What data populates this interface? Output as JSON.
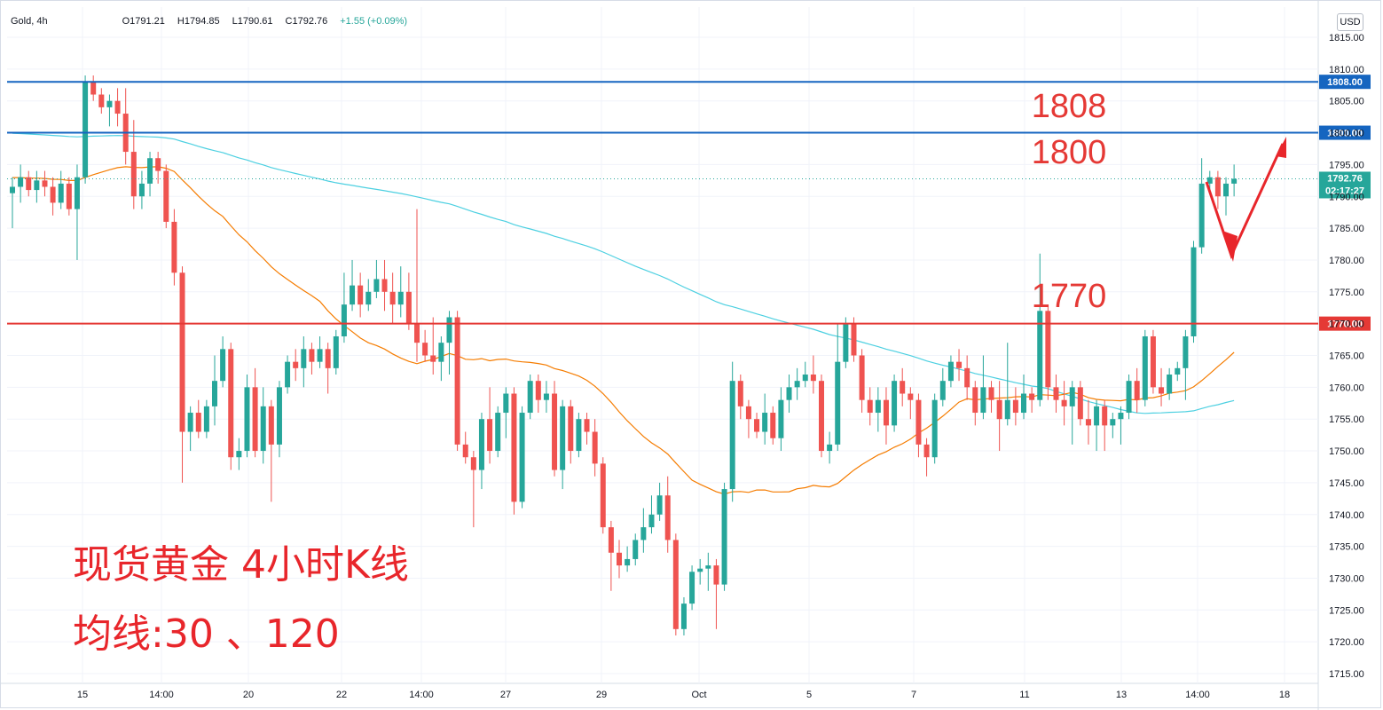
{
  "header": {
    "symbol": "Gold, 4h",
    "open": "O1791.21",
    "high": "H1794.85",
    "low": "L1790.61",
    "close": "C1792.76",
    "change": "+1.55 (+0.09%)"
  },
  "currency_button": "USD",
  "annotations": {
    "line1": "现货黄金 4小时K线",
    "line2": "均线:30 、120"
  },
  "colors": {
    "up": "#26a69a",
    "down": "#ef5350",
    "resistance": "#1565c0",
    "support": "#e53935",
    "ma30": "#f57c00",
    "ma120": "#4dd0e1",
    "arrow": "#e8262b"
  },
  "chart_data": {
    "type": "candlestick",
    "ylim": [
      1711,
      1820
    ],
    "y_ticks": [
      1715,
      1720,
      1725,
      1730,
      1735,
      1740,
      1745,
      1750,
      1755,
      1760,
      1765,
      1770,
      1775,
      1780,
      1785,
      1790,
      1795,
      1800,
      1805,
      1810,
      1815
    ],
    "x_ticks": [
      "15",
      "14:00",
      "20",
      "22",
      "14:00",
      "27",
      "29",
      "Oct",
      "5",
      "7",
      "11",
      "13",
      "14:00",
      "18"
    ],
    "levels": [
      {
        "label": "1808",
        "value": 1808,
        "badge": "1808.00",
        "color": "resistance"
      },
      {
        "label": "1800",
        "value": 1800,
        "badge": "1800.00",
        "color": "resistance"
      },
      {
        "label": "1770",
        "value": 1770,
        "badge": "1770.00",
        "color": "support"
      }
    ],
    "last_price": {
      "value": 1792.76,
      "label": "1792.76",
      "countdown": "02:17:27"
    },
    "candles": [
      [
        1790.5,
        1791.5,
        1785,
        1793
      ],
      [
        1791.5,
        1793,
        1789,
        1795
      ],
      [
        1793,
        1791,
        1790,
        1794
      ],
      [
        1791,
        1792.5,
        1789,
        1794
      ],
      [
        1792.5,
        1791.5,
        1790,
        1794
      ],
      [
        1791.5,
        1789,
        1787,
        1793
      ],
      [
        1789,
        1792,
        1788,
        1794
      ],
      [
        1792,
        1788,
        1787,
        1793
      ],
      [
        1788,
        1793,
        1780,
        1795
      ],
      [
        1793,
        1808,
        1792,
        1809
      ],
      [
        1808,
        1806,
        1805,
        1809
      ],
      [
        1806,
        1804,
        1803,
        1807
      ],
      [
        1804,
        1805,
        1801,
        1806
      ],
      [
        1805,
        1803,
        1801,
        1807
      ],
      [
        1803,
        1797,
        1795,
        1807
      ],
      [
        1797,
        1790,
        1788,
        1802
      ],
      [
        1790,
        1792,
        1788,
        1794
      ],
      [
        1792,
        1796,
        1790,
        1797
      ],
      [
        1796,
        1794,
        1792,
        1797
      ],
      [
        1794,
        1786,
        1785,
        1795
      ],
      [
        1786,
        1778,
        1776,
        1788
      ],
      [
        1778,
        1753,
        1745,
        1779
      ],
      [
        1753,
        1756,
        1750,
        1757
      ],
      [
        1756,
        1753,
        1752,
        1758
      ],
      [
        1753,
        1757,
        1752,
        1758
      ],
      [
        1757,
        1761,
        1754,
        1765
      ],
      [
        1761,
        1766,
        1760,
        1768
      ],
      [
        1766,
        1749,
        1747,
        1767
      ],
      [
        1749,
        1750,
        1747,
        1752
      ],
      [
        1750,
        1760,
        1749,
        1762
      ],
      [
        1760,
        1750,
        1749,
        1763
      ],
      [
        1750,
        1757,
        1748,
        1760
      ],
      [
        1757,
        1751,
        1742,
        1758
      ],
      [
        1751,
        1760,
        1749,
        1761
      ],
      [
        1760,
        1764,
        1759,
        1765
      ],
      [
        1764,
        1763,
        1761,
        1766
      ],
      [
        1763,
        1766,
        1760,
        1768
      ],
      [
        1766,
        1764,
        1762,
        1767
      ],
      [
        1764,
        1766,
        1763,
        1768
      ],
      [
        1766,
        1763,
        1759,
        1767
      ],
      [
        1763,
        1768,
        1762,
        1769
      ],
      [
        1768,
        1773,
        1767,
        1778
      ],
      [
        1773,
        1776,
        1772,
        1780
      ],
      [
        1776,
        1773,
        1771,
        1778
      ],
      [
        1773,
        1775,
        1772,
        1777
      ],
      [
        1775,
        1777,
        1774,
        1780
      ],
      [
        1777,
        1775,
        1772,
        1780
      ],
      [
        1775,
        1773,
        1770,
        1778
      ],
      [
        1773,
        1775,
        1771,
        1779
      ],
      [
        1775,
        1770,
        1769,
        1778
      ],
      [
        1770,
        1767,
        1764,
        1788
      ],
      [
        1767,
        1765,
        1764,
        1769
      ],
      [
        1765,
        1764,
        1762,
        1771
      ],
      [
        1764,
        1767,
        1761,
        1768
      ],
      [
        1767,
        1771,
        1762,
        1772
      ],
      [
        1771,
        1751,
        1750,
        1772
      ],
      [
        1751,
        1749,
        1748,
        1753
      ],
      [
        1749,
        1747,
        1738,
        1750
      ],
      [
        1747,
        1755,
        1744,
        1756
      ],
      [
        1755,
        1750,
        1748,
        1760
      ],
      [
        1750,
        1756,
        1749,
        1757
      ],
      [
        1756,
        1759,
        1752,
        1760
      ],
      [
        1759,
        1742,
        1740,
        1760
      ],
      [
        1742,
        1756,
        1741,
        1757
      ],
      [
        1756,
        1761,
        1755,
        1762
      ],
      [
        1761,
        1758,
        1756,
        1762
      ],
      [
        1758,
        1759,
        1756,
        1761
      ],
      [
        1759,
        1747,
        1746,
        1761
      ],
      [
        1747,
        1757,
        1744,
        1758
      ],
      [
        1757,
        1750,
        1748,
        1758
      ],
      [
        1750,
        1755,
        1749,
        1756
      ],
      [
        1755,
        1753,
        1751,
        1756
      ],
      [
        1753,
        1748,
        1746,
        1755
      ],
      [
        1748,
        1738,
        1737,
        1749
      ],
      [
        1738,
        1734,
        1728,
        1739
      ],
      [
        1734,
        1732,
        1730,
        1736
      ],
      [
        1732,
        1733,
        1731,
        1735
      ],
      [
        1733,
        1736,
        1732,
        1737
      ],
      [
        1736,
        1738,
        1734,
        1741
      ],
      [
        1738,
        1740,
        1737,
        1743
      ],
      [
        1740,
        1743,
        1739,
        1745
      ],
      [
        1743,
        1736,
        1734,
        1746
      ],
      [
        1736,
        1722,
        1721,
        1737
      ],
      [
        1722,
        1726,
        1721,
        1727
      ],
      [
        1726,
        1731,
        1725,
        1732
      ],
      [
        1731,
        1731.5,
        1729,
        1733
      ],
      [
        1731.5,
        1732,
        1728,
        1734
      ],
      [
        1732,
        1729,
        1722,
        1733
      ],
      [
        1729,
        1744,
        1728,
        1745
      ],
      [
        1744,
        1761,
        1742,
        1764
      ],
      [
        1761,
        1757,
        1755,
        1762
      ],
      [
        1757,
        1755,
        1752,
        1758
      ],
      [
        1755,
        1753,
        1752,
        1756
      ],
      [
        1753,
        1756,
        1751,
        1759
      ],
      [
        1756,
        1752,
        1751,
        1757
      ],
      [
        1752,
        1758,
        1750,
        1760
      ],
      [
        1758,
        1760,
        1756,
        1762
      ],
      [
        1760,
        1761,
        1758,
        1763
      ],
      [
        1761,
        1762,
        1760,
        1764
      ],
      [
        1762,
        1761,
        1759,
        1765
      ],
      [
        1761,
        1750,
        1749,
        1762
      ],
      [
        1750,
        1751,
        1748,
        1753
      ],
      [
        1751,
        1764,
        1750,
        1770
      ],
      [
        1764,
        1770,
        1763,
        1771
      ],
      [
        1770,
        1765,
        1764,
        1771
      ],
      [
        1765,
        1758,
        1756,
        1766
      ],
      [
        1758,
        1756,
        1754,
        1760
      ],
      [
        1756,
        1758,
        1753,
        1760
      ],
      [
        1758,
        1754,
        1751,
        1760
      ],
      [
        1754,
        1761,
        1753,
        1762
      ],
      [
        1761,
        1759,
        1757,
        1763
      ],
      [
        1759,
        1758,
        1755,
        1760
      ],
      [
        1758,
        1751,
        1749,
        1759
      ],
      [
        1751,
        1749,
        1746,
        1752
      ],
      [
        1749,
        1758,
        1748,
        1759
      ],
      [
        1758,
        1761,
        1757,
        1763
      ],
      [
        1761,
        1764,
        1760,
        1765
      ],
      [
        1764,
        1763,
        1761,
        1766
      ],
      [
        1763,
        1760,
        1758,
        1765
      ],
      [
        1760,
        1756,
        1754,
        1761
      ],
      [
        1756,
        1760,
        1755,
        1765
      ],
      [
        1760,
        1758,
        1756,
        1761
      ],
      [
        1758,
        1755,
        1750,
        1761
      ],
      [
        1755,
        1758,
        1754,
        1767
      ],
      [
        1758,
        1756,
        1754,
        1760
      ],
      [
        1756,
        1759,
        1755,
        1762
      ],
      [
        1759,
        1758,
        1756,
        1760
      ],
      [
        1758,
        1772,
        1757,
        1781
      ],
      [
        1772,
        1760,
        1758,
        1773
      ],
      [
        1760,
        1758,
        1756,
        1762
      ],
      [
        1758,
        1757,
        1754,
        1761
      ],
      [
        1757,
        1760,
        1751,
        1761
      ],
      [
        1760,
        1755,
        1754,
        1761
      ],
      [
        1755,
        1754,
        1751,
        1758
      ],
      [
        1754,
        1757,
        1750,
        1758
      ],
      [
        1757,
        1754,
        1750,
        1758
      ],
      [
        1754,
        1755,
        1752,
        1756
      ],
      [
        1755,
        1756,
        1751,
        1757
      ],
      [
        1756,
        1761,
        1755,
        1762
      ],
      [
        1761,
        1758,
        1756,
        1763
      ],
      [
        1758,
        1768,
        1757,
        1769
      ],
      [
        1768,
        1760,
        1759,
        1769
      ],
      [
        1760,
        1759,
        1757,
        1763
      ],
      [
        1759,
        1762,
        1758,
        1763
      ],
      [
        1762,
        1763,
        1761,
        1764
      ],
      [
        1763,
        1768,
        1758,
        1769
      ],
      [
        1768,
        1782,
        1767,
        1783
      ],
      [
        1782,
        1792,
        1781,
        1796
      ],
      [
        1792,
        1793,
        1791,
        1794
      ],
      [
        1793,
        1790,
        1788,
        1794
      ],
      [
        1790,
        1792,
        1787,
        1793
      ],
      [
        1792,
        1792.76,
        1790,
        1795
      ]
    ]
  }
}
